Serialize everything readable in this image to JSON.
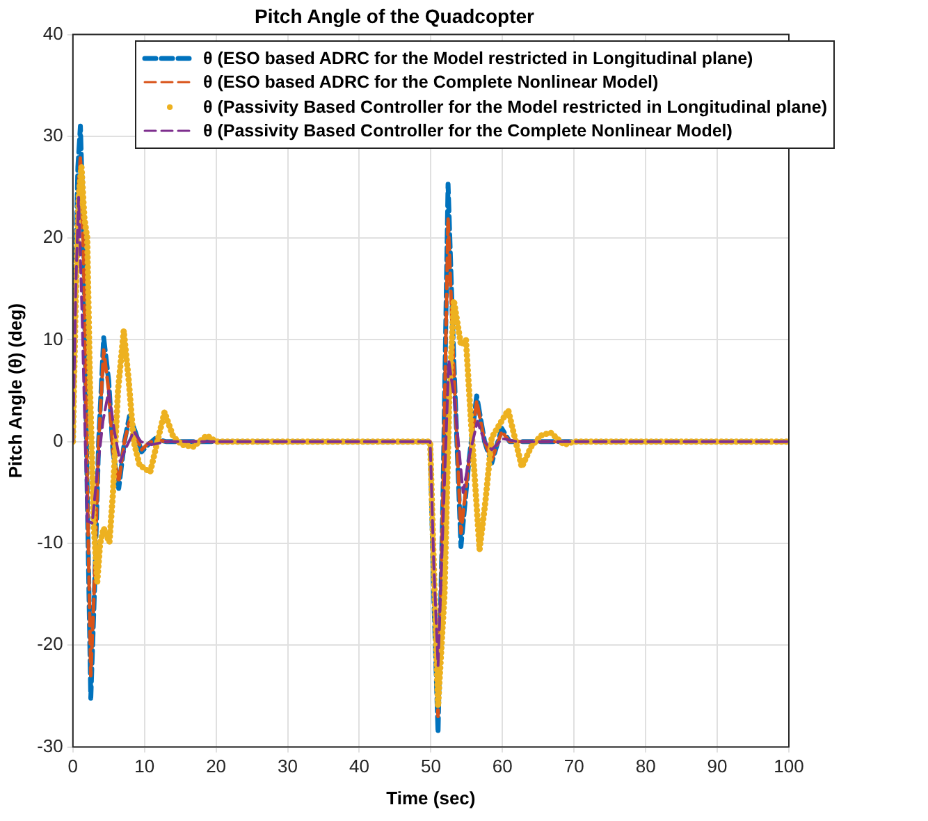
{
  "chart_data": {
    "type": "line",
    "title": "Pitch Angle of the Quadcopter",
    "xlabel": "Time (sec)",
    "ylabel": "Pitch Angle (θ) (deg)",
    "xlim": [
      0,
      100
    ],
    "xticks": [
      0,
      10,
      20,
      30,
      40,
      50,
      60,
      70,
      80,
      90,
      100
    ],
    "ylim": [
      -30,
      40
    ],
    "yticks": [
      -30,
      -20,
      -10,
      0,
      10,
      20,
      30,
      40
    ],
    "grid": true,
    "legend": "top right",
    "series": [
      {
        "name": "θ (ESO based ADRC for the Model restricted in Longitudinal plane)",
        "color": "#0072bd",
        "line_style": "dashed",
        "x": [
          0,
          0.3,
          0.7,
          1.05,
          1.5,
          2.0,
          2.5,
          3.0,
          3.6,
          4.3,
          5.0,
          5.6,
          6.4,
          7.2,
          7.9,
          8.7,
          9.6,
          10.5,
          11.5,
          13,
          20,
          30,
          40,
          49.9,
          50.4,
          51.0,
          51.7,
          52.4,
          53.2,
          54.2,
          55.3,
          56.4,
          57.5,
          58.5,
          59.9,
          61,
          63,
          70,
          80,
          100
        ],
        "values": [
          0,
          15,
          27,
          31,
          20,
          -5,
          -25.2,
          -15,
          0,
          10.2,
          6,
          -1,
          -4.6,
          0,
          2.5,
          1,
          -1,
          -0.3,
          0.3,
          0,
          0,
          0,
          0,
          0,
          -15,
          -28.6,
          -5,
          25.3,
          8,
          -10.3,
          -2,
          4.5,
          0,
          -2.1,
          1.3,
          0,
          0,
          0,
          0,
          0
        ]
      },
      {
        "name": "θ (ESO based ADRC for the Complete Nonlinear Model)",
        "color": "#d95319",
        "line_style": "dashed",
        "x": [
          0,
          0.3,
          0.7,
          1.05,
          1.5,
          2.0,
          2.5,
          3.0,
          3.6,
          4.3,
          5.0,
          5.6,
          6.4,
          7.2,
          7.9,
          8.7,
          9.6,
          10.5,
          11.5,
          13,
          20,
          30,
          40,
          49.9,
          50.4,
          51.0,
          51.7,
          52.4,
          53.2,
          54.2,
          55.3,
          56.4,
          57.5,
          58.5,
          59.9,
          61,
          63,
          70,
          80,
          100
        ],
        "values": [
          0,
          13,
          24,
          28,
          18,
          -4,
          -23,
          -14,
          0,
          9,
          5,
          -1,
          -4,
          0,
          2,
          0.8,
          -0.8,
          -0.2,
          0.2,
          0,
          0,
          0,
          0,
          0,
          -14,
          -27,
          -5,
          22,
          7,
          -9,
          -2,
          4,
          0,
          -1.8,
          1,
          0,
          0,
          0,
          0,
          0
        ]
      },
      {
        "name": "θ (Passivity Based Controller for the Model restricted in Longitudinal plane)",
        "color": "#edb120",
        "line_style": "dotted",
        "x": [
          0,
          0.4,
          0.8,
          1.2,
          1.6,
          2.0,
          2.4,
          2.9,
          3.4,
          3.8,
          4.3,
          5.1,
          5.6,
          6.3,
          7.1,
          7.8,
          8.5,
          9.3,
          10.8,
          11.8,
          12.8,
          14,
          15.2,
          16.8,
          18.7,
          20,
          30,
          49.9,
          50.4,
          51.0,
          51.9,
          52.6,
          53.2,
          54.2,
          54.9,
          55.6,
          56.8,
          57.6,
          58.5,
          60.8,
          62.7,
          64,
          65.4,
          66.7,
          68.6,
          70,
          80,
          100
        ],
        "values": [
          0,
          14,
          24,
          27,
          22,
          20,
          5,
          -8,
          -13.8,
          -10,
          -8.5,
          -9.9,
          -5,
          5,
          10.9,
          6,
          0,
          -2.3,
          -3,
          0,
          2.9,
          0.5,
          -0.3,
          -0.5,
          0.6,
          0,
          0,
          0,
          -12,
          -26,
          -15,
          5,
          13.9,
          9.5,
          10,
          2,
          -10.6,
          -6,
          0.4,
          3.1,
          -2.5,
          -0.5,
          0.6,
          0.9,
          -0.3,
          0,
          0,
          0
        ]
      },
      {
        "name": "θ (Passivity Based Controller for the Complete Nonlinear Model)",
        "color": "#7e2f8e",
        "line_style": "dashed",
        "x": [
          0,
          0.4,
          0.8,
          1.3,
          2.0,
          2.7,
          3.4,
          4.2,
          5.0,
          5.8,
          6.6,
          7.5,
          8.5,
          9.5,
          11,
          13,
          20,
          49.9,
          50.4,
          51.0,
          51.7,
          52.5,
          53.3,
          54.5,
          55.5,
          56.5,
          57.5,
          58.5,
          60,
          62,
          70,
          100
        ],
        "values": [
          0,
          15,
          24,
          12,
          -7.8,
          -8,
          -3,
          2,
          5,
          1,
          -2,
          -0.5,
          1,
          0,
          -0.3,
          0,
          0,
          0,
          -12,
          -22,
          -8,
          8,
          4,
          -5,
          -1,
          2,
          0,
          -0.8,
          0.3,
          0,
          0,
          0
        ]
      }
    ]
  }
}
